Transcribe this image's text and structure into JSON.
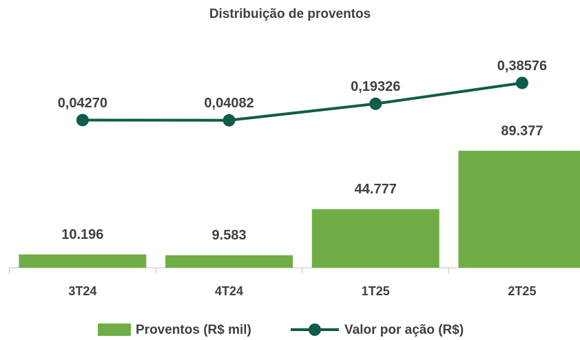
{
  "chart_data": {
    "type": "bar_line",
    "title": "Distribuição de proventos",
    "categories": [
      "3T24",
      "4T24",
      "1T25",
      "2T25"
    ],
    "series": [
      {
        "name": "Proventos (R$ mil)",
        "type": "bar",
        "color": "#70ad47",
        "values": [
          10196,
          9583,
          44777,
          89377
        ],
        "value_labels": [
          "10.196",
          "9.583",
          "44.777",
          "89.377"
        ]
      },
      {
        "name": "Valor por ação (R$)",
        "type": "line",
        "axis": "y2",
        "color": "#0e5c4a",
        "values": [
          0.0427,
          0.04082,
          0.19326,
          0.38576
        ],
        "value_labels": [
          "0,04270",
          "0,04082",
          "0,19326",
          "0,38576"
        ]
      }
    ],
    "ylim": [
      0,
      173000
    ],
    "y2lim": [
      -1.32,
      0.77
    ],
    "legend": "bottom"
  }
}
